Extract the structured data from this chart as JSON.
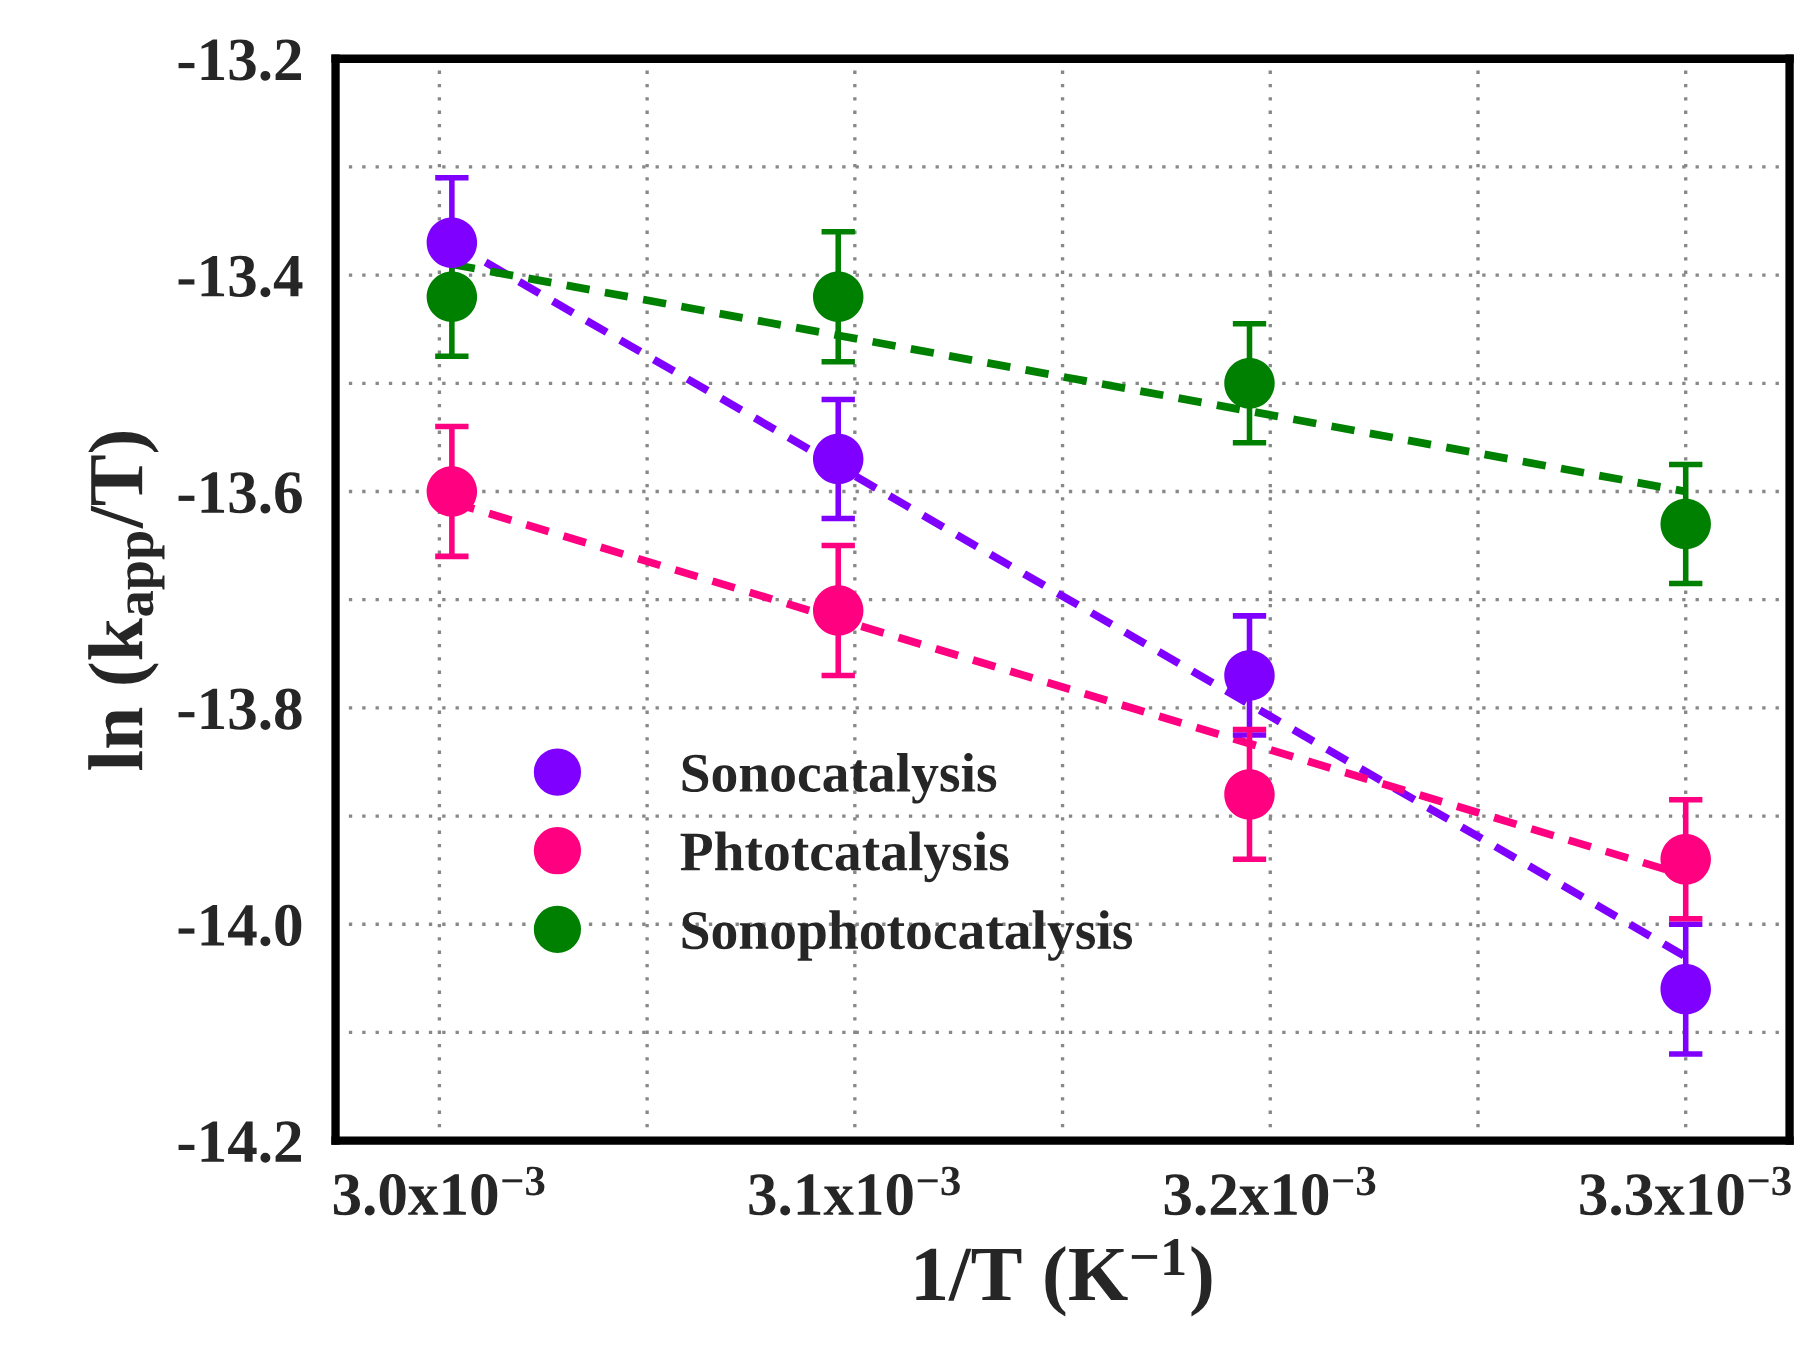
{
  "chart_data": {
    "type": "scatter",
    "xlabel": "1/T (K$^{−1}$)",
    "ylabel": "ln (k$_{app}$/T)",
    "xlim": [
      0.002975,
      0.003325
    ],
    "xticks": [
      {
        "value": 0.003,
        "label": "3.0x10$^{−3}$"
      },
      {
        "value": 0.00305,
        "label": null
      },
      {
        "value": 0.0031,
        "label": "3.1x10$^{−3}$"
      },
      {
        "value": 0.00315,
        "label": null
      },
      {
        "value": 0.0032,
        "label": "3.2x10$^{−3}$"
      },
      {
        "value": 0.00325,
        "label": null
      },
      {
        "value": 0.0033,
        "label": "3.3x10$^{−3}$"
      }
    ],
    "ylim": [
      -14.2,
      -13.2
    ],
    "yticks": [
      {
        "value": -14.2,
        "label": "-14.2"
      },
      {
        "value": -14.1,
        "label": null
      },
      {
        "value": -14.0,
        "label": "-14.0"
      },
      {
        "value": -13.9,
        "label": null
      },
      {
        "value": -13.8,
        "label": "-13.8"
      },
      {
        "value": -13.7,
        "label": null
      },
      {
        "value": -13.6,
        "label": "-13.6"
      },
      {
        "value": -13.5,
        "label": null
      },
      {
        "value": -13.4,
        "label": "-13.4"
      },
      {
        "value": -13.3,
        "label": null
      },
      {
        "value": -13.2,
        "label": "-13.2"
      }
    ],
    "grid": true,
    "legend": "bottom left",
    "series": [
      {
        "name": "Sonocatalysis",
        "marker": "circle",
        "color": "#8000ff",
        "x": [
          0.003003,
          0.003096,
          0.003195,
          0.0033
        ],
        "values": [
          -13.37,
          -13.57,
          -13.77,
          -14.06
        ],
        "errors": [
          0.06,
          0.055,
          0.055,
          0.06
        ]
      },
      {
        "name": "Phtotcatalysis",
        "marker": "circle",
        "color": "#ff0080",
        "x": [
          0.003003,
          0.003096,
          0.003195,
          0.0033
        ],
        "values": [
          -13.6,
          -13.71,
          -13.88,
          -13.94
        ],
        "errors": [
          0.06,
          0.06,
          0.06,
          0.055
        ]
      },
      {
        "name": "Sonophotocatalysis",
        "marker": "circle",
        "color": "#008000",
        "x": [
          0.003003,
          0.003096,
          0.003195,
          0.0033
        ],
        "values": [
          -13.42,
          -13.42,
          -13.5,
          -13.63
        ],
        "errors": [
          0.055,
          0.06,
          0.055,
          0.055
        ]
      },
      {
        "type": "line",
        "line_style": "dashed",
        "color": "#8000ff",
        "x": [
          0.003003,
          0.0033
        ],
        "values": [
          -13.37,
          -14.03
        ]
      },
      {
        "type": "line",
        "line_style": "dashed",
        "color": "#ff0080",
        "x": [
          0.003003,
          0.0033
        ],
        "values": [
          -13.61,
          -13.955
        ]
      },
      {
        "type": "line",
        "line_style": "dashed",
        "color": "#008000",
        "x": [
          0.003003,
          0.0033
        ],
        "values": [
          -13.39,
          -13.6
        ]
      }
    ]
  }
}
